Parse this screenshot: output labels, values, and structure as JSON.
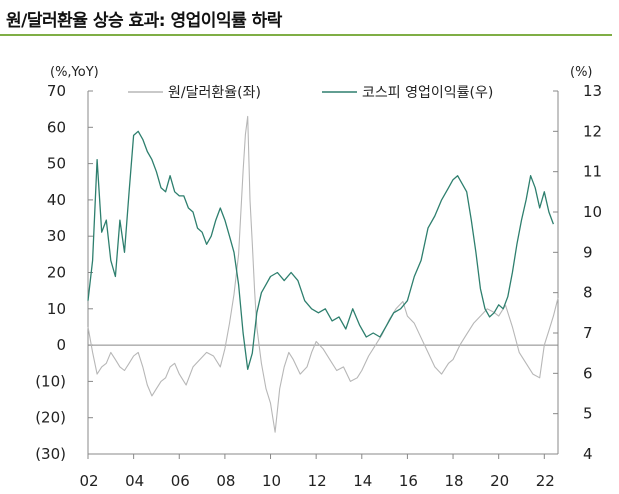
{
  "title": "원/달러환율 상승 효과: 영업이익률 하락",
  "colors": {
    "accent_rule": "#7fae45",
    "krw_line": "#b7b7b7",
    "margin_line": "#2e7f6e"
  },
  "chart_data": {
    "type": "line",
    "left_axis_unit": "(%,YoY)",
    "right_axis_unit": "(%)",
    "left_ylim": [
      -30,
      70
    ],
    "right_ylim": [
      4,
      13
    ],
    "left_ticks": [
      "70",
      "60",
      "50",
      "40",
      "30",
      "20",
      "10",
      "0",
      "(10)",
      "(20)",
      "(30)"
    ],
    "right_ticks": [
      "13",
      "12",
      "11",
      "10",
      "9",
      "8",
      "7",
      "6",
      "5",
      "4"
    ],
    "x_ticks": [
      "02",
      "04",
      "06",
      "08",
      "10",
      "12",
      "14",
      "16",
      "18",
      "20",
      "22"
    ],
    "xlim": [
      2002.0,
      2022.6
    ],
    "legend_position": "top",
    "series": [
      {
        "name": "원/달러환율(좌)",
        "axis": "left",
        "color": "#b7b7b7",
        "x": [
          2002.0,
          2002.2,
          2002.4,
          2002.6,
          2002.8,
          2003.0,
          2003.2,
          2003.4,
          2003.6,
          2003.8,
          2004.0,
          2004.2,
          2004.4,
          2004.6,
          2004.8,
          2005.0,
          2005.2,
          2005.4,
          2005.6,
          2005.8,
          2006.0,
          2006.3,
          2006.6,
          2006.9,
          2007.2,
          2007.5,
          2007.8,
          2008.0,
          2008.2,
          2008.4,
          2008.6,
          2008.8,
          2008.9,
          2009.0,
          2009.1,
          2009.2,
          2009.3,
          2009.4,
          2009.6,
          2009.8,
          2010.0,
          2010.1,
          2010.2,
          2010.4,
          2010.6,
          2010.8,
          2011.0,
          2011.3,
          2011.6,
          2011.8,
          2012.0,
          2012.3,
          2012.6,
          2012.9,
          2013.2,
          2013.5,
          2013.8,
          2014.0,
          2014.3,
          2014.6,
          2014.9,
          2015.2,
          2015.5,
          2015.8,
          2016.0,
          2016.3,
          2016.6,
          2016.9,
          2017.2,
          2017.5,
          2017.8,
          2018.0,
          2018.3,
          2018.6,
          2018.9,
          2019.2,
          2019.5,
          2019.8,
          2020.0,
          2020.3,
          2020.6,
          2020.9,
          2021.2,
          2021.5,
          2021.8,
          2022.0,
          2022.2,
          2022.4,
          2022.6
        ],
        "values": [
          5,
          -2,
          -8,
          -6,
          -5,
          -2,
          -4,
          -6,
          -7,
          -5,
          -3,
          -2,
          -6,
          -11,
          -14,
          -12,
          -10,
          -9,
          -6,
          -5,
          -8,
          -11,
          -6,
          -4,
          -2,
          -3,
          -6,
          -1,
          6,
          14,
          25,
          48,
          58,
          63,
          40,
          28,
          15,
          5,
          -5,
          -12,
          -16,
          -20,
          -24,
          -12,
          -6,
          -2,
          -4,
          -8,
          -6,
          -2,
          1,
          -1,
          -4,
          -7,
          -6,
          -10,
          -9,
          -7,
          -3,
          0,
          3,
          7,
          10,
          12,
          8,
          6,
          2,
          -2,
          -6,
          -8,
          -5,
          -4,
          0,
          3,
          6,
          8,
          10,
          9,
          8,
          11,
          5,
          -2,
          -5,
          -8,
          -9,
          0,
          4,
          8,
          13
        ]
      },
      {
        "name": "코스피 영업이익률(우)",
        "axis": "right",
        "color": "#2e7f6e",
        "x": [
          2002.0,
          2002.2,
          2002.4,
          2002.6,
          2002.8,
          2003.0,
          2003.2,
          2003.4,
          2003.6,
          2003.8,
          2004.0,
          2004.2,
          2004.4,
          2004.6,
          2004.8,
          2005.0,
          2005.2,
          2005.4,
          2005.6,
          2005.8,
          2006.0,
          2006.2,
          2006.4,
          2006.6,
          2006.8,
          2007.0,
          2007.2,
          2007.4,
          2007.6,
          2007.8,
          2008.0,
          2008.2,
          2008.4,
          2008.6,
          2008.8,
          2009.0,
          2009.2,
          2009.4,
          2009.6,
          2009.8,
          2010.0,
          2010.3,
          2010.6,
          2010.9,
          2011.2,
          2011.5,
          2011.8,
          2012.1,
          2012.4,
          2012.7,
          2013.0,
          2013.3,
          2013.6,
          2013.9,
          2014.2,
          2014.5,
          2014.8,
          2015.1,
          2015.4,
          2015.7,
          2016.0,
          2016.3,
          2016.6,
          2016.9,
          2017.2,
          2017.5,
          2017.8,
          2018.0,
          2018.2,
          2018.4,
          2018.6,
          2018.8,
          2019.0,
          2019.2,
          2019.4,
          2019.6,
          2019.8,
          2020.0,
          2020.2,
          2020.4,
          2020.6,
          2020.8,
          2021.0,
          2021.2,
          2021.4,
          2021.6,
          2021.8,
          2022.0,
          2022.2,
          2022.4
        ],
        "values": [
          7.8,
          8.8,
          11.3,
          9.5,
          9.8,
          8.8,
          8.4,
          9.8,
          9.0,
          10.5,
          11.9,
          12.0,
          11.8,
          11.5,
          11.3,
          11.0,
          10.6,
          10.5,
          10.9,
          10.5,
          10.4,
          10.4,
          10.1,
          10.0,
          9.6,
          9.5,
          9.2,
          9.4,
          9.8,
          10.1,
          9.8,
          9.4,
          9.0,
          8.2,
          7.0,
          6.1,
          6.5,
          7.5,
          8.0,
          8.2,
          8.4,
          8.5,
          8.3,
          8.5,
          8.3,
          7.8,
          7.6,
          7.5,
          7.6,
          7.3,
          7.4,
          7.1,
          7.6,
          7.2,
          6.9,
          7.0,
          6.9,
          7.2,
          7.5,
          7.6,
          7.8,
          8.4,
          8.8,
          9.6,
          9.9,
          10.3,
          10.6,
          10.8,
          10.9,
          10.7,
          10.5,
          9.8,
          9.0,
          8.1,
          7.6,
          7.4,
          7.5,
          7.7,
          7.6,
          7.9,
          8.5,
          9.2,
          9.8,
          10.3,
          10.9,
          10.6,
          10.1,
          10.5,
          10.0,
          9.7
        ]
      }
    ]
  }
}
